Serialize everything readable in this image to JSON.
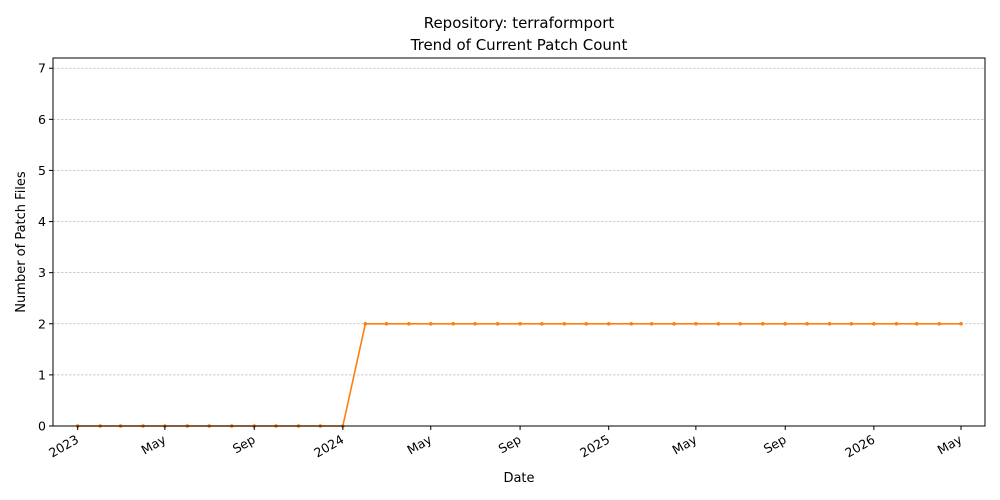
{
  "chart_data": {
    "type": "line",
    "title": "Repository: terraformport",
    "subtitle": "Trend of Current Patch Count",
    "xlabel": "Date",
    "ylabel": "Number of Patch Files",
    "ylim": [
      0,
      7.2
    ],
    "xlim": [
      "2022-11-28",
      "2026-06-03"
    ],
    "yticks": [
      "0",
      "1",
      "2",
      "3",
      "4",
      "5",
      "6",
      "7"
    ],
    "xticks": [
      {
        "date": "2023-01-01",
        "label": "2023"
      },
      {
        "date": "2023-05-01",
        "label": "May"
      },
      {
        "date": "2023-09-01",
        "label": "Sep"
      },
      {
        "date": "2024-01-01",
        "label": "2024"
      },
      {
        "date": "2024-05-01",
        "label": "May"
      },
      {
        "date": "2024-09-01",
        "label": "Sep"
      },
      {
        "date": "2025-01-01",
        "label": "2025"
      },
      {
        "date": "2025-05-01",
        "label": "May"
      },
      {
        "date": "2025-09-01",
        "label": "Sep"
      },
      {
        "date": "2026-01-01",
        "label": "2026"
      },
      {
        "date": "2026-05-01",
        "label": "May"
      }
    ],
    "grid": "y-dashed",
    "color": "#ff7f0e",
    "series": [
      {
        "x": [
          "2023-01-01",
          "2023-02-01",
          "2023-03-01",
          "2023-04-01",
          "2023-05-01",
          "2023-06-01",
          "2023-07-01",
          "2023-08-01",
          "2023-09-01",
          "2023-10-01",
          "2023-11-01",
          "2023-12-01",
          "2024-01-01",
          "2024-02-01",
          "2024-03-01",
          "2024-04-01",
          "2024-05-01",
          "2024-06-01",
          "2024-07-01",
          "2024-08-01",
          "2024-09-01",
          "2024-10-01",
          "2024-11-01",
          "2024-12-01",
          "2025-01-01",
          "2025-02-01",
          "2025-03-01",
          "2025-04-01",
          "2025-05-01",
          "2025-06-01",
          "2025-07-01",
          "2025-08-01",
          "2025-09-01",
          "2025-10-01",
          "2025-11-01",
          "2025-12-01",
          "2026-01-01",
          "2026-02-01",
          "2026-03-01",
          "2026-04-01",
          "2026-05-01"
        ],
        "values": [
          0,
          0,
          0,
          0,
          0,
          0,
          0,
          0,
          0,
          0,
          0,
          0,
          0,
          2,
          2,
          2,
          2,
          2,
          2,
          2,
          2,
          2,
          2,
          2,
          2,
          2,
          2,
          2,
          2,
          2,
          2,
          2,
          2,
          2,
          2,
          2,
          2,
          2,
          2,
          2,
          2
        ]
      }
    ]
  }
}
